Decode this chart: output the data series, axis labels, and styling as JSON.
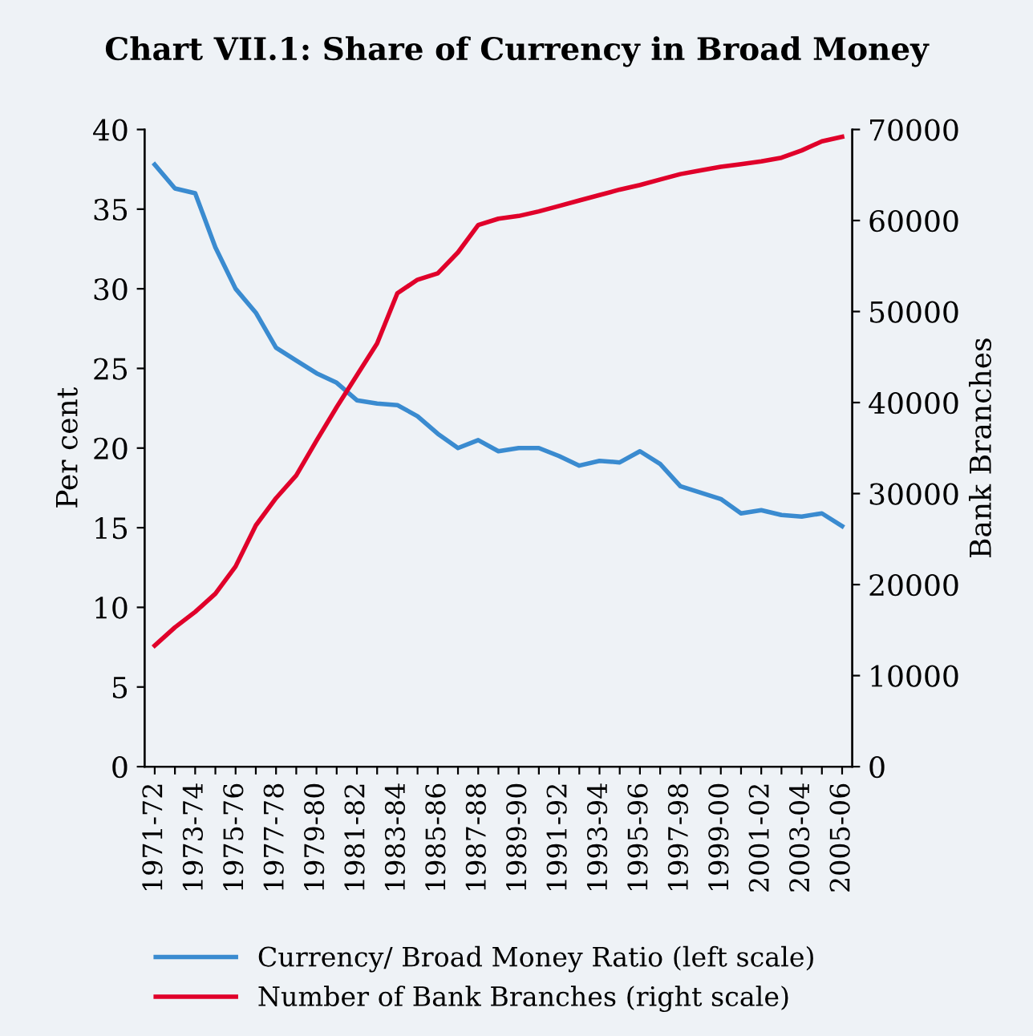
{
  "chart_data": {
    "type": "line",
    "title": "Chart VII.1: Share of Currency in Broad Money",
    "ylabel": "Per cent",
    "y2label": "Bank Branches",
    "categories": [
      "1971-72",
      null,
      "1973-74",
      null,
      "1975-76",
      null,
      "1977-78",
      null,
      "1979-80",
      null,
      "1981-82",
      null,
      "1983-84",
      null,
      "1985-86",
      null,
      "1987-88",
      null,
      "1989-90",
      null,
      "1991-92",
      null,
      "1993-94",
      null,
      "1995-96",
      null,
      "1997-98",
      null,
      "1999-00",
      null,
      "2001-02",
      null,
      "2003-04",
      null,
      "2005-06"
    ],
    "series": [
      {
        "name": "Currency/ Broad Money Ratio (left scale)",
        "color": "#3a8bd0",
        "values": [
          37.8,
          36.3,
          36.0,
          32.6,
          30.0,
          28.5,
          26.3,
          25.5,
          24.7,
          24.1,
          23.0,
          22.8,
          22.7,
          22.0,
          20.9,
          20.0,
          20.5,
          19.8,
          20.0,
          20.0,
          19.5,
          18.9,
          19.2,
          19.1,
          19.8,
          19.0,
          17.6,
          17.2,
          16.8,
          15.9,
          16.1,
          15.8,
          15.7,
          15.9,
          15.1
        ]
      },
      {
        "name": "Number of Bank Branches (right scale)",
        "color": "#e0002a",
        "axis": "y2",
        "values": [
          13300,
          15300,
          17000,
          19000,
          22000,
          26500,
          29500,
          32000,
          35800,
          39500,
          43000,
          46500,
          52000,
          53500,
          54200,
          56500,
          59500,
          60200,
          60500,
          61000,
          61600,
          62200,
          62800,
          63400,
          63900,
          64500,
          65100,
          65500,
          65900,
          66200,
          66500,
          66900,
          67700,
          68700,
          69200
        ]
      }
    ],
    "ylim": [
      0,
      40
    ],
    "yticks": [
      0,
      5,
      10,
      15,
      20,
      25,
      30,
      35,
      40
    ],
    "y2lim": [
      0,
      70000
    ],
    "y2ticks": [
      0,
      10000,
      20000,
      30000,
      40000,
      50000,
      60000,
      70000
    ],
    "grid": false,
    "legend": "bottom",
    "line_style": "solid",
    "marker": "none"
  }
}
